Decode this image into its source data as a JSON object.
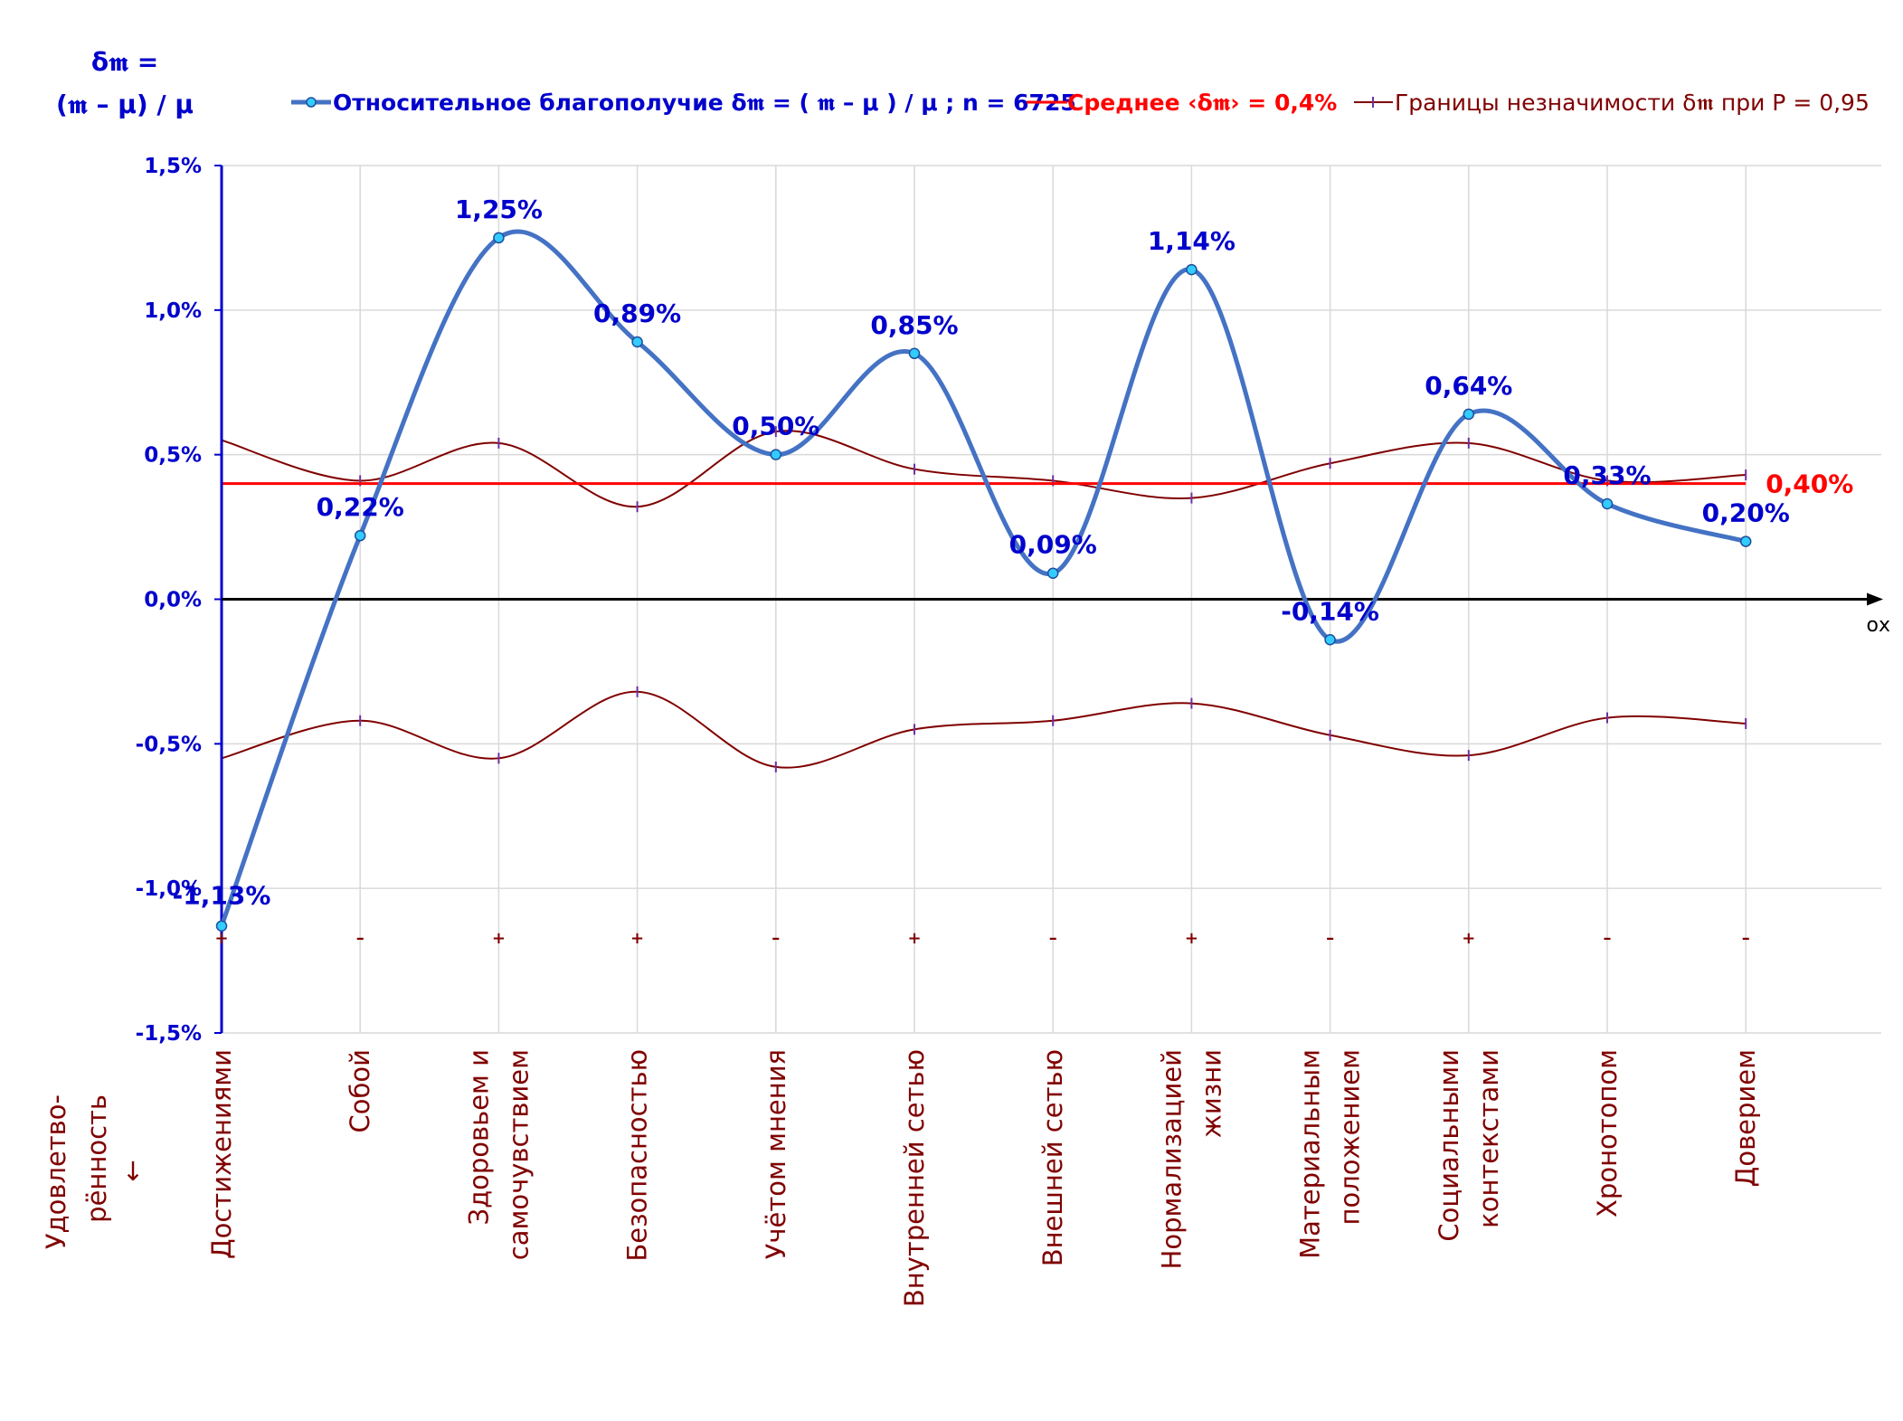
{
  "chart_data": {
    "type": "line",
    "y_title_line1": "δ𝖒 =",
    "y_title_line2": "(𝖒 – μ) / μ",
    "x_axis_name": "ох",
    "side_label_line1": "Удовлетво-",
    "side_label_line2": "рённость",
    "side_label_arrow": "↓",
    "ylim": [
      -1.5,
      1.5
    ],
    "yticks": [
      1.5,
      1.0,
      0.5,
      0.0,
      -0.5,
      -1.0,
      -1.5
    ],
    "ytick_labels": [
      "1,5%",
      "1,0%",
      "0,5%",
      "0,0%",
      "-0,5%",
      "-1,0%",
      "-1,5%"
    ],
    "categories": [
      [
        "Достижениями"
      ],
      [
        "Собой"
      ],
      [
        "Здоровьем и",
        "самочувствием"
      ],
      [
        "Безопасностью"
      ],
      [
        "Учётом мнения"
      ],
      [
        "Внутренней сетью"
      ],
      [
        "Внешней сетью"
      ],
      [
        "Нормализацией",
        "жизни"
      ],
      [
        "Материальным",
        "положением"
      ],
      [
        "Социальными",
        "контекстами"
      ],
      [
        "Хронотопом"
      ],
      [
        "Доверием"
      ]
    ],
    "series": [
      {
        "name": "Относительное благополучие δ𝖒 = ( 𝖒 – μ ) / μ ; n = 6725",
        "color": "#4472c4",
        "values": [
          -1.13,
          0.22,
          1.25,
          0.89,
          0.5,
          0.85,
          0.09,
          1.14,
          -0.14,
          0.64,
          0.33,
          0.2
        ],
        "labels": [
          "-1,13%",
          "0,22%",
          "1,25%",
          "0,89%",
          "0,50%",
          "0,85%",
          "0,09%",
          "1,14%",
          "-0,14%",
          "0,64%",
          "0,33%",
          "0,20%"
        ]
      },
      {
        "name": "Среднее ‹δ𝖒› = 0,4%",
        "color": "#ff0000",
        "value": 0.4,
        "label": "0,40%"
      },
      {
        "name": "Границы незначимости δ𝖒 при P = 0,95",
        "color": "#800000",
        "upper": [
          0.55,
          0.41,
          0.54,
          0.32,
          0.58,
          0.45,
          0.41,
          0.35,
          0.47,
          0.54,
          0.41,
          0.43
        ],
        "lower": [
          -0.55,
          -0.42,
          -0.55,
          -0.32,
          -0.58,
          -0.45,
          -0.42,
          -0.36,
          -0.47,
          -0.54,
          -0.41,
          -0.43
        ]
      }
    ],
    "significance_signs": [
      "+",
      "–",
      "+",
      "+",
      "–",
      "+",
      "–",
      "+",
      "–",
      "+",
      "–",
      "–"
    ],
    "grid": true,
    "legend_position": "top"
  }
}
